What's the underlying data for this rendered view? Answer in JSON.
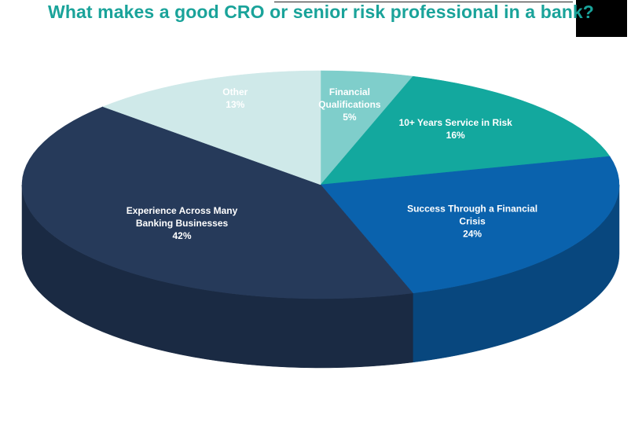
{
  "chart_data": {
    "type": "pie",
    "title": "What makes a good CRO or senior risk professional in a bank?",
    "slices": [
      {
        "label": "Financial Qualifications",
        "label_lines": [
          "Financial",
          "Qualifications"
        ],
        "value": 5,
        "value_label": "5%",
        "color": "#7fcecb",
        "side_color": "#5aa7a4",
        "label_color": "#ffffff"
      },
      {
        "label": "10+ Years Service in Risk",
        "label_lines": [
          "10+ Years Service in Risk"
        ],
        "value": 16,
        "value_label": "16%",
        "color": "#13a89e",
        "side_color": "#0d7f78",
        "label_color": "#ffffff"
      },
      {
        "label": "Success Through a Financial Crisis",
        "label_lines": [
          "Success Through a Financial",
          "Crisis"
        ],
        "value": 24,
        "value_label": "24%",
        "color": "#0a62ad",
        "side_color": "#08477e",
        "label_color": "#ffffff"
      },
      {
        "label": "Experience Across Many Banking Businesses",
        "label_lines": [
          "Experience Across Many",
          "Banking Businesses"
        ],
        "value": 42,
        "value_label": "42%",
        "color": "#263a5a",
        "side_color": "#1a2a43",
        "label_color": "#ffffff"
      },
      {
        "label": "Other",
        "label_lines": [
          "Other"
        ],
        "value": 13,
        "value_label": "13%",
        "color": "#cfe9e9",
        "side_color": "#a9cccc",
        "label_color": "#ffffff"
      }
    ],
    "style": "3d",
    "legend": "none"
  }
}
